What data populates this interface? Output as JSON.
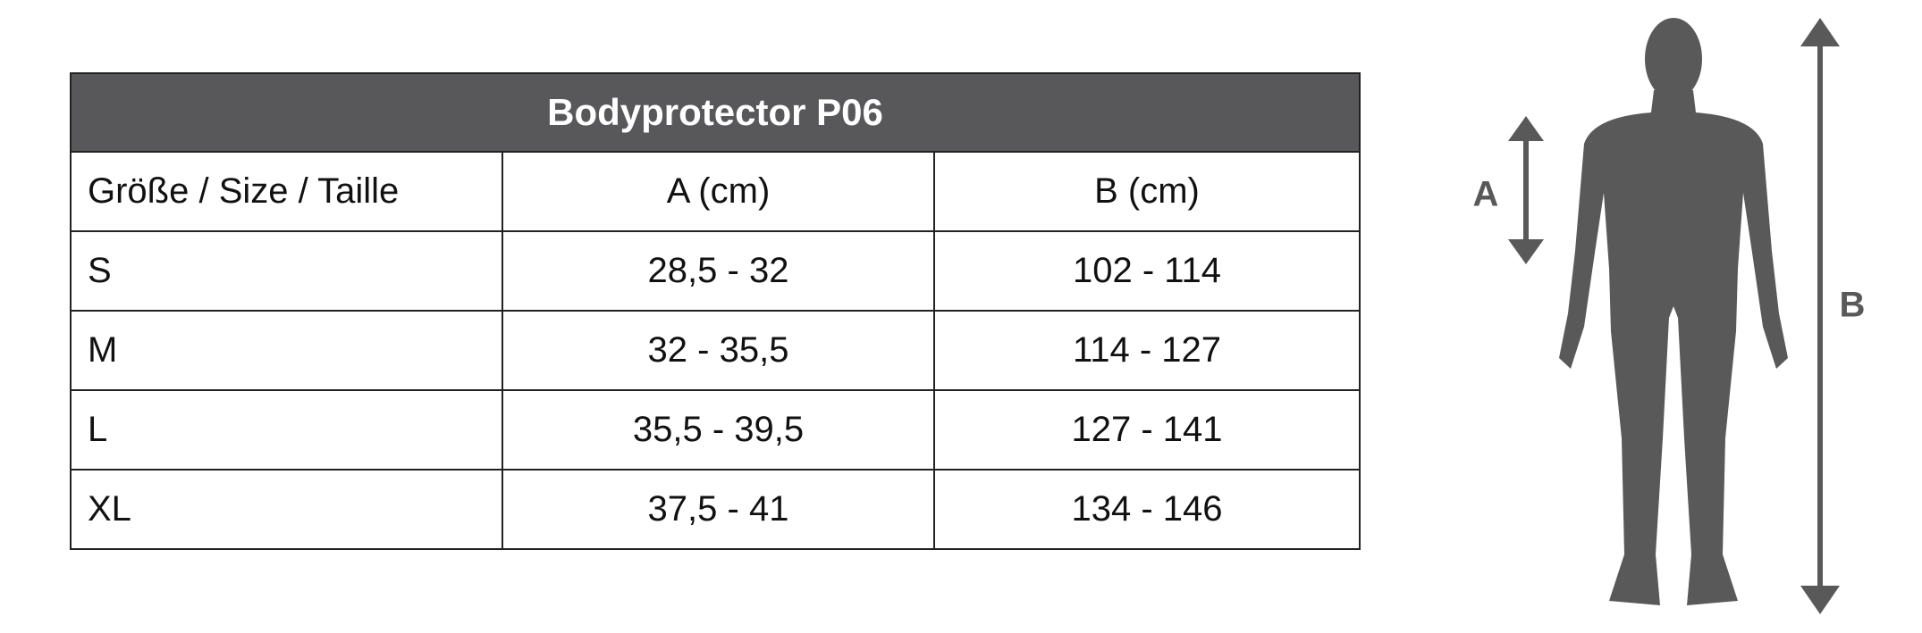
{
  "header": {
    "title": "Bodyprotector P06"
  },
  "table": {
    "columns": [
      "Größe / Size / Taille",
      "A (cm)",
      "B (cm)"
    ],
    "rows": [
      [
        "S",
        "28,5 - 32",
        "102 - 114"
      ],
      [
        "M",
        "32 - 35,5",
        "114 - 127"
      ],
      [
        "L",
        "35,5 - 39,5",
        "127 - 141"
      ],
      [
        "XL",
        "37,5 - 41",
        "134 - 146"
      ]
    ]
  },
  "figure": {
    "label_a": "A",
    "label_b": "B"
  }
}
